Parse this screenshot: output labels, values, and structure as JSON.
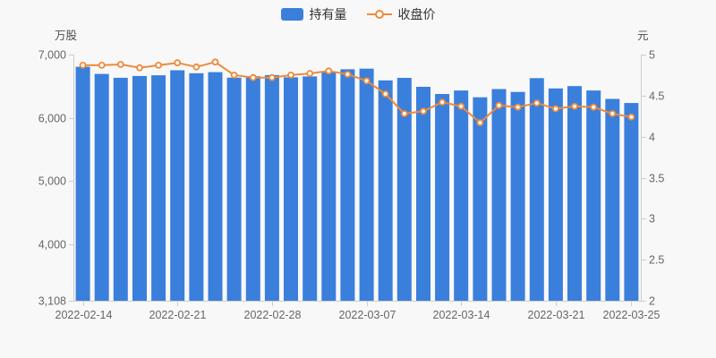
{
  "page": {
    "background": "#f8f8f8"
  },
  "legend": {
    "items": [
      {
        "label": "持有量",
        "type": "bar",
        "color": "#3a7fdc"
      },
      {
        "label": "收盘价",
        "type": "line",
        "color": "#ee8a3c"
      }
    ]
  },
  "chart_data": {
    "type": "bar+line",
    "x": [
      "2022-02-14",
      "2022-02-15",
      "2022-02-16",
      "2022-02-17",
      "2022-02-18",
      "2022-02-21",
      "2022-02-22",
      "2022-02-23",
      "2022-02-24",
      "2022-02-25",
      "2022-02-28",
      "2022-03-01",
      "2022-03-02",
      "2022-03-03",
      "2022-03-04",
      "2022-03-07",
      "2022-03-08",
      "2022-03-09",
      "2022-03-10",
      "2022-03-11",
      "2022-03-14",
      "2022-03-15",
      "2022-03-16",
      "2022-03-17",
      "2022-03-18",
      "2022-03-21",
      "2022-03-22",
      "2022-03-23",
      "2022-03-24",
      "2022-03-25"
    ],
    "series": [
      {
        "name": "持有量",
        "type": "bar",
        "axis": "left",
        "unit": "万股",
        "color": "#3a7fdc",
        "values": [
          6808,
          6695,
          6633,
          6662,
          6673,
          6752,
          6705,
          6722,
          6635,
          6657,
          6676,
          6640,
          6655,
          6722,
          6768,
          6778,
          6592,
          6632,
          6490,
          6377,
          6432,
          6325,
          6455,
          6410,
          6628,
          6465,
          6502,
          6432,
          6300,
          6235
        ]
      },
      {
        "name": "收盘价",
        "type": "line",
        "axis": "right",
        "unit": "元",
        "color": "#ee8a3c",
        "values": [
          4.87,
          4.87,
          4.88,
          4.84,
          4.87,
          4.9,
          4.85,
          4.91,
          4.75,
          4.72,
          4.72,
          4.75,
          4.77,
          4.8,
          4.76,
          4.68,
          4.52,
          4.28,
          4.31,
          4.42,
          4.37,
          4.17,
          4.38,
          4.36,
          4.41,
          4.34,
          4.37,
          4.36,
          4.28,
          4.24
        ]
      }
    ],
    "left_axis": {
      "title": "万股",
      "min": 3108,
      "max": 7000,
      "ticks": [
        {
          "value": 7000,
          "label": "7,000"
        },
        {
          "value": 6000,
          "label": "6,000"
        },
        {
          "value": 5000,
          "label": "5,000"
        },
        {
          "value": 4000,
          "label": "4,000"
        },
        {
          "value": 3108,
          "label": "3,108"
        }
      ]
    },
    "right_axis": {
      "title": "元",
      "min": 2,
      "max": 5,
      "ticks": [
        {
          "value": 5,
          "label": "5"
        },
        {
          "value": 4.5,
          "label": "4.5"
        },
        {
          "value": 4,
          "label": "4"
        },
        {
          "value": 3.5,
          "label": "3.5"
        },
        {
          "value": 3,
          "label": "3"
        },
        {
          "value": 2.5,
          "label": "2.5"
        },
        {
          "value": 2,
          "label": "2"
        }
      ]
    },
    "x_ticks": [
      {
        "index": 0,
        "label": "2022-02-14"
      },
      {
        "index": 5,
        "label": "2022-02-21"
      },
      {
        "index": 10,
        "label": "2022-02-28"
      },
      {
        "index": 15,
        "label": "2022-03-07"
      },
      {
        "index": 20,
        "label": "2022-03-14"
      },
      {
        "index": 25,
        "label": "2022-03-21"
      },
      {
        "index": 29,
        "label": "2022-03-25"
      }
    ],
    "grid": false,
    "legend_position": "top-center",
    "marker": {
      "shape": "hollow-circle",
      "fill": "#fcfcfc",
      "stroke": "#ee8a3c"
    },
    "axis_line_color": "#cccccc",
    "tick_label_color": "#666666"
  }
}
